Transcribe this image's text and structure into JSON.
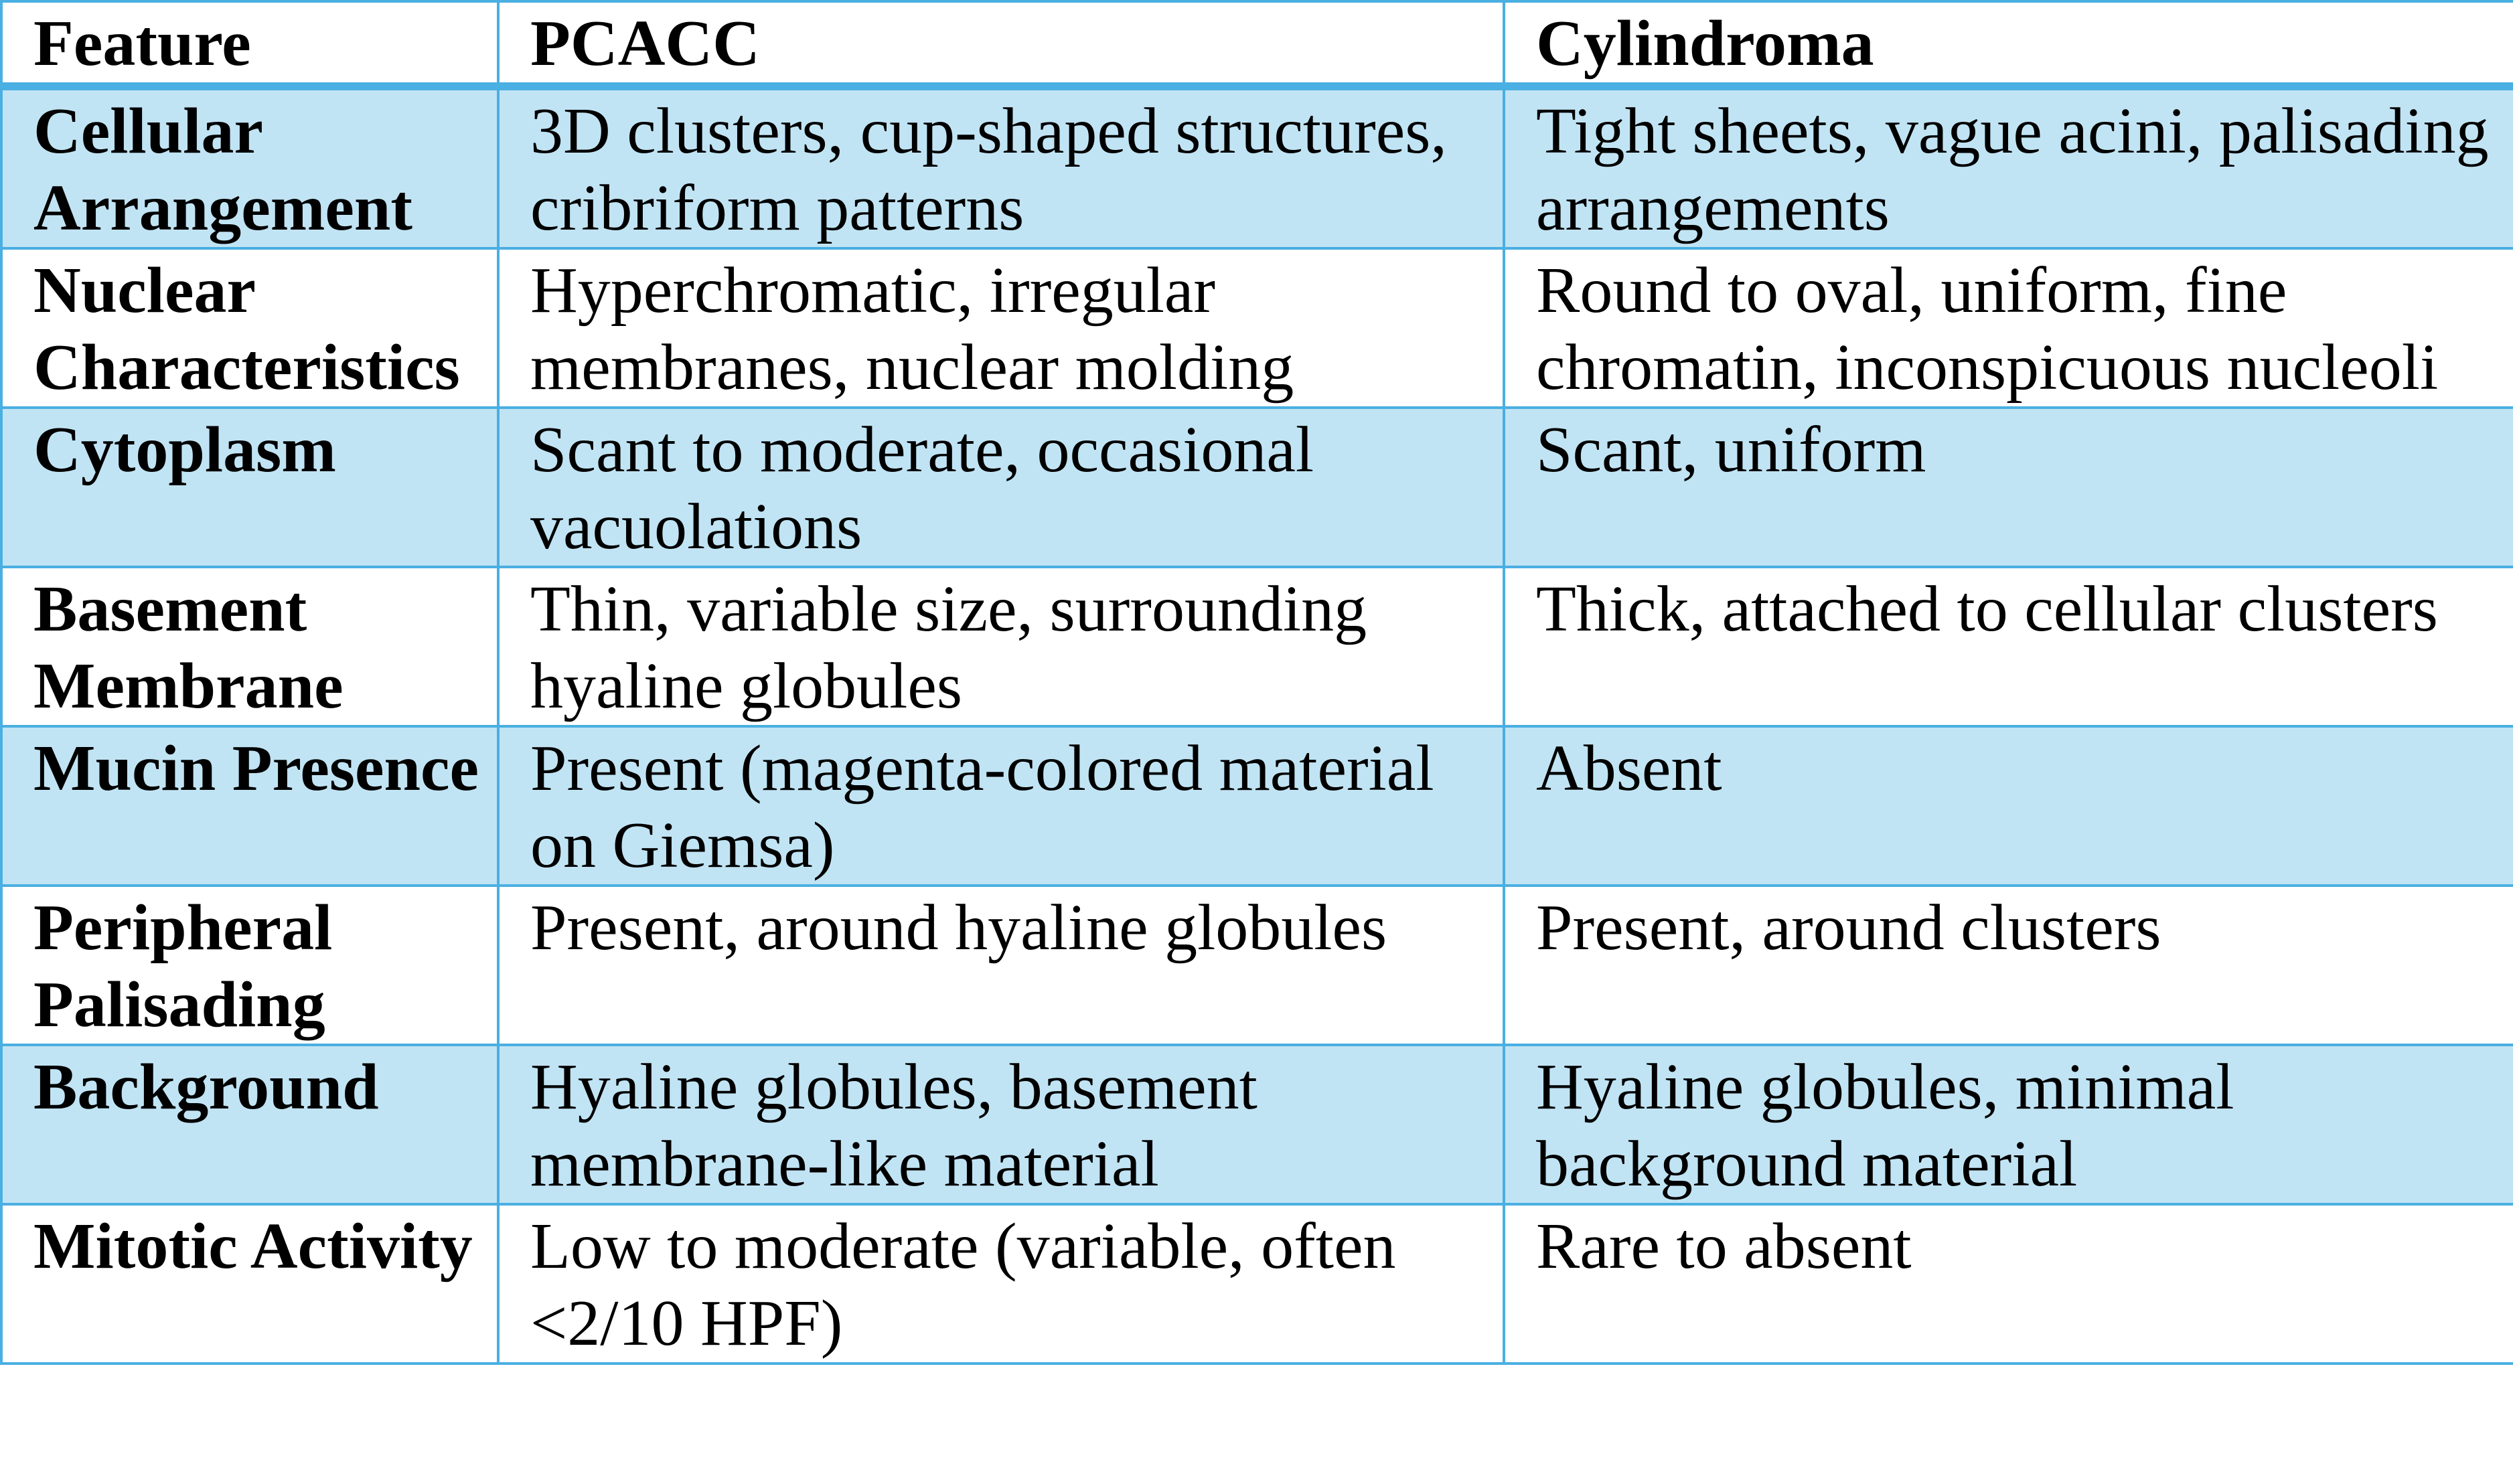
{
  "table": {
    "headers": [
      "Feature",
      "PCACC",
      "Cylindroma"
    ],
    "rows": [
      [
        "Cellular Arrangement",
        "3D clusters, cup-shaped structures, cribriform patterns",
        "Tight sheets, vague acini, palisading arrangements"
      ],
      [
        "Nuclear Characteristics",
        "Hyperchromatic, irregular membranes, nuclear molding",
        "Round to oval, uniform, fine chromatin, inconspicuous nucleoli"
      ],
      [
        "Cytoplasm",
        "Scant to moderate, occasional vacuolations",
        "Scant, uniform"
      ],
      [
        "Basement Membrane",
        "Thin, variable size, surrounding hyaline globules",
        "Thick, attached to cellular clusters"
      ],
      [
        "Mucin Presence",
        "Present (magenta-colored material on Giemsa)",
        "Absent"
      ],
      [
        "Peripheral Palisading",
        "Present, around hyaline globules",
        "Present, around clusters"
      ],
      [
        "Background",
        "Hyaline globules, basement membrane-like material",
        "Hyaline globules, minimal background material"
      ],
      [
        "Mitotic Activity",
        "Low to moderate (variable, often <2/10 HPF)",
        "Rare to absent"
      ]
    ]
  },
  "colors": {
    "border": "#4AAFE2",
    "shaded_row": "#C1E4F4"
  }
}
